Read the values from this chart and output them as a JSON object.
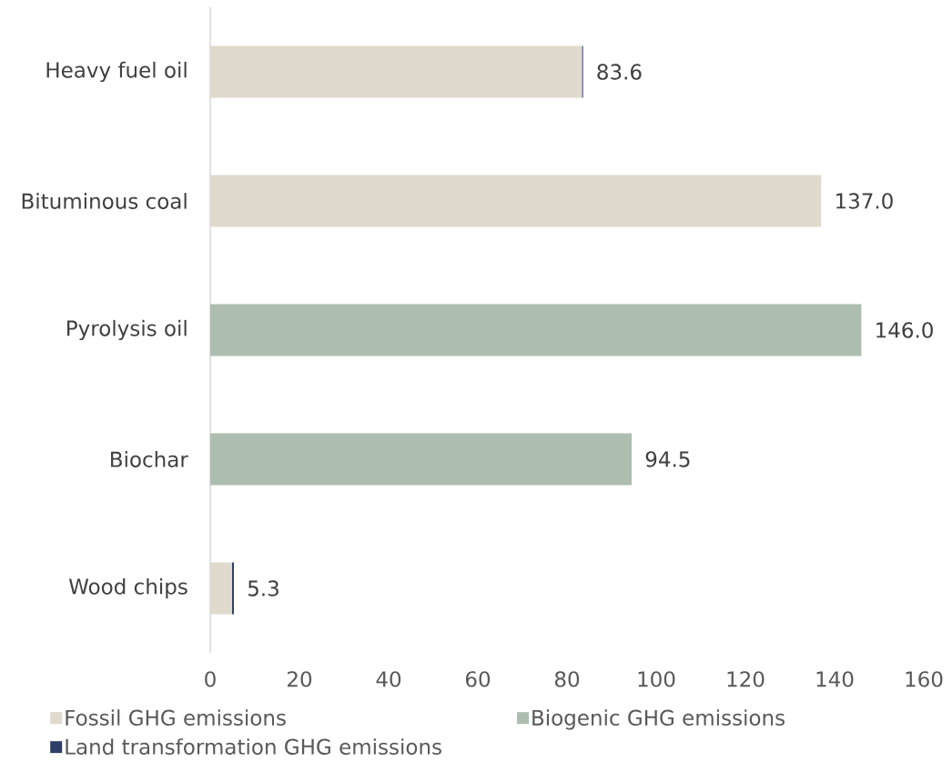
{
  "chart_data": {
    "type": "bar",
    "orientation": "horizontal",
    "stacked": true,
    "categories": [
      "Heavy fuel oil",
      "Bituminous coal",
      "Pyrolysis oil",
      "Biochar",
      "Wood chips"
    ],
    "series": [
      {
        "name": "Fossil GHG emissions",
        "color": "#e0d9ce",
        "values": [
          83.4,
          137.0,
          null,
          null,
          4.9
        ]
      },
      {
        "name": "Biogenic GHG emissions",
        "color": "#adbdaf",
        "values": [
          null,
          null,
          146.0,
          94.5,
          null
        ]
      },
      {
        "name": "Land transformation GHG emissions",
        "color": "#2e3e66",
        "values": [
          0.2,
          null,
          null,
          null,
          0.4
        ]
      }
    ],
    "totals": [
      "83.6",
      "137.0",
      "146.0",
      "94.5",
      "5.3"
    ],
    "xlim": [
      0,
      160
    ],
    "xticks": [
      0,
      20,
      40,
      60,
      80,
      100,
      120,
      140,
      160
    ],
    "legend": "bottom"
  }
}
